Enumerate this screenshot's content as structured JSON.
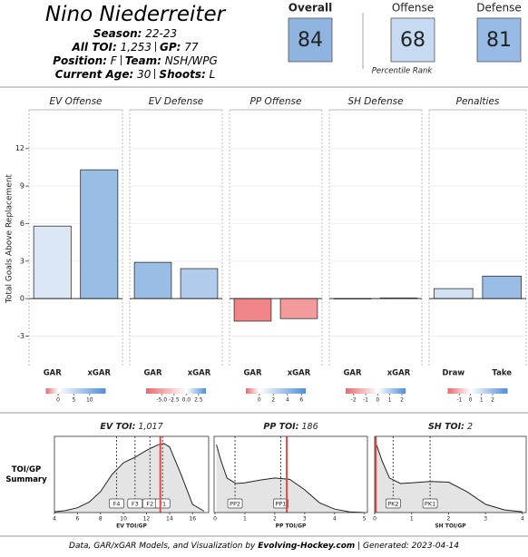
{
  "header": {
    "name": "Nino Niederreiter",
    "lines": [
      [
        {
          "label": "Season:",
          "value": "22-23"
        }
      ],
      [
        {
          "label": "All TOI:",
          "value": "1,253"
        },
        {
          "label": "GP:",
          "value": "77"
        }
      ],
      [
        {
          "label": "Position:",
          "value": "F"
        },
        {
          "label": "Team:",
          "value": "NSH/WPG"
        }
      ],
      [
        {
          "label": "Current Age:",
          "value": "30"
        },
        {
          "label": "Shoots:",
          "value": "L"
        }
      ]
    ]
  },
  "ratings": {
    "items": [
      {
        "label": "Overall",
        "value": 84,
        "color": "#8fb4e0"
      },
      {
        "label": "Offense",
        "value": 68,
        "color": "#c6daf1"
      },
      {
        "label": "Defense",
        "value": 81,
        "color": "#97bbe5"
      }
    ],
    "note": "Percentile Rank"
  },
  "chart_data": [
    {
      "type": "bar",
      "title": "EV Offense",
      "categories": [
        "GAR",
        "xGAR"
      ],
      "values": [
        5.8,
        10.3
      ],
      "colors": [
        "#dce7f6",
        "#9abde6"
      ],
      "ylim": [
        -5.5,
        15.1
      ],
      "yticks": [
        -3,
        0,
        3,
        6,
        9,
        12
      ],
      "ylabel": "Total Goals Above Replacement",
      "grid": true,
      "color_scale": {
        "lim": [
          -3.9,
          15.1
        ],
        "ticks": [
          0,
          5,
          10
        ]
      }
    },
    {
      "type": "bar",
      "title": "EV Defense",
      "categories": [
        "GAR",
        "xGAR"
      ],
      "values": [
        2.9,
        2.4
      ],
      "colors": [
        "#9abde6",
        "#b0cbec"
      ],
      "ylim": [
        -5.5,
        15.1
      ],
      "color_scale": {
        "lim": [
          -8.2,
          4.0
        ],
        "ticks": [
          {
            "value": -5,
            "label": "-5.0"
          },
          -2.5,
          {
            "value": 0,
            "label": "0.0"
          },
          2.5
        ]
      }
    },
    {
      "type": "bar",
      "title": "PP Offense",
      "categories": [
        "GAR",
        "xGAR"
      ],
      "values": [
        -1.8,
        -1.6
      ],
      "colors": [
        "#f08587",
        "#f39a9c"
      ],
      "ylim": [
        -5.5,
        15.1
      ],
      "color_scale": {
        "lim": [
          -1.9,
          6.6
        ],
        "ticks": [
          0,
          2,
          4,
          6
        ]
      }
    },
    {
      "type": "bar",
      "title": "SH Defense",
      "categories": [
        "GAR",
        "xGAR"
      ],
      "values": [
        0,
        0.05
      ],
      "colors": [
        "#f5f5f5",
        "#eef3fa"
      ],
      "ylim": [
        -5.5,
        15.1
      ],
      "color_scale": {
        "lim": [
          -2.65,
          2.3
        ],
        "ticks": [
          -2,
          -1,
          0,
          1,
          2
        ]
      }
    },
    {
      "type": "bar",
      "title": "Penalties",
      "categories": [
        "Draw",
        "Take"
      ],
      "values": [
        0.8,
        1.8
      ],
      "colors": [
        "#d3e1f4",
        "#9abde6"
      ],
      "ylim": [
        -5.5,
        15.1
      ],
      "color_scale": {
        "lim": [
          -2.05,
          3.35
        ],
        "ticks": [
          -1,
          0,
          1,
          2
        ]
      }
    },
    {
      "type": "density",
      "title": "EV TOI:",
      "total": "1,017",
      "ylabel": "TOI/GP Summary",
      "xlabel": "EV TOI/GP",
      "x": [
        4,
        5,
        6,
        7,
        8,
        9,
        10,
        11,
        12,
        13,
        13.5,
        14,
        15,
        16,
        17
      ],
      "values": [
        0.01,
        0.03,
        0.07,
        0.15,
        0.3,
        0.55,
        0.72,
        0.8,
        0.9,
        0.98,
        1.0,
        0.95,
        0.55,
        0.12,
        0.02
      ],
      "xlim": [
        4,
        17.4
      ],
      "ylim": [
        0,
        1.05
      ],
      "xticks": [
        4,
        6,
        8,
        10,
        12,
        14,
        16
      ],
      "markers": [
        {
          "label": "F4",
          "x": 9.4
        },
        {
          "label": "F3",
          "x": 11
        },
        {
          "label": "F2",
          "x": 12.3
        },
        {
          "label": "F1",
          "x": 13.4
        }
      ],
      "current": 13.2,
      "current_color": "#e84a4a"
    },
    {
      "type": "density",
      "title": "PP TOI:",
      "total": "186",
      "xlabel": "PP TOI/GP",
      "x": [
        0.05,
        0.2,
        0.4,
        0.7,
        1,
        1.5,
        2,
        2.5,
        3,
        3.5,
        4,
        4.5,
        5
      ],
      "values": [
        0.98,
        0.75,
        0.5,
        0.42,
        0.43,
        0.47,
        0.5,
        0.48,
        0.33,
        0.14,
        0.05,
        0.01,
        0
      ],
      "xlim": [
        -0.03,
        5.1
      ],
      "ylim": [
        0,
        1.05
      ],
      "xticks": [
        0,
        1,
        2,
        3,
        4,
        5
      ],
      "markers": [
        {
          "label": "PP2",
          "x": 0.67
        },
        {
          "label": "PP1",
          "x": 2.2
        }
      ],
      "current": 2.4,
      "current_color": "#e84a4a"
    },
    {
      "type": "density",
      "title": "SH TOI:",
      "total": "2",
      "xlabel": "SH TOI/GP",
      "x": [
        0.05,
        0.2,
        0.4,
        0.7,
        1,
        1.5,
        2,
        2.5,
        3,
        3.5,
        4
      ],
      "values": [
        0.98,
        0.75,
        0.5,
        0.42,
        0.43,
        0.45,
        0.44,
        0.3,
        0.12,
        0.04,
        0.01
      ],
      "xlim": [
        0,
        4.1
      ],
      "ylim": [
        0,
        1.05
      ],
      "xticks": [
        0,
        1,
        2,
        3,
        4
      ],
      "markers": [
        {
          "label": "PK2",
          "x": 0.5
        },
        {
          "label": "PK1",
          "x": 1.5
        }
      ],
      "current": 0.03,
      "current_color": "#e84a4a"
    }
  ],
  "footer": {
    "prefix": "Data, GAR/xGAR Models, and Visualization by",
    "site": "Evolving-Hockey.com",
    "generated": "| Generated: 2023-04-14"
  }
}
